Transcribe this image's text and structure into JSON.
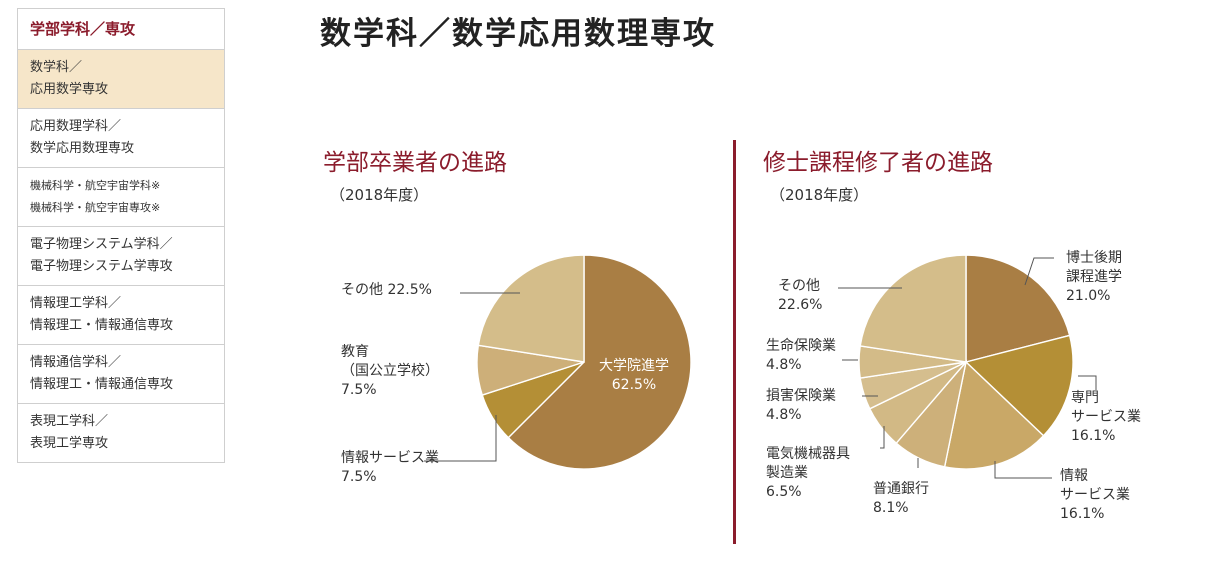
{
  "sidebar": {
    "heading": "学部学科／専攻",
    "items": [
      {
        "label": "数学科／\n応用数学専攻"
      },
      {
        "label": "応用数理学科／\n数学応用数理専攻"
      },
      {
        "label": "機械科学・航空宇宙学科※\n機械科学・航空宇宙専攻※"
      },
      {
        "label": "電子物理システム学科／\n電子物理システム学専攻"
      },
      {
        "label": "情報理工学科／\n情報理工・情報通信専攻"
      },
      {
        "label": "情報通信学科／\n情報理工・情報通信専攻"
      },
      {
        "label": "表現工学科／\n表現工学専攻"
      }
    ]
  },
  "page_title": "数学科／数学応用数理専攻",
  "colors": {
    "accent": "#8b1c2c",
    "active_bg": "#f6e6c9"
  },
  "chart_data": [
    {
      "type": "pie",
      "title": "学部卒業者の進路",
      "subtitle": "（2018年度）",
      "slices": [
        {
          "label": "大学院進学",
          "value": 62.5,
          "text": "62.5%",
          "color": "#a97e44"
        },
        {
          "label": "情報サービス業",
          "value": 7.5,
          "text": "7.5%",
          "color": "#b48f36"
        },
        {
          "label": "教育\n（国公立学校）",
          "value": 7.5,
          "text": "7.5%",
          "color": "#cdaf79"
        },
        {
          "label": "その他",
          "value": 22.5,
          "text": "22.5%",
          "color": "#d4bd8a"
        }
      ]
    },
    {
      "type": "pie",
      "title": "修士課程修了者の進路",
      "subtitle": "（2018年度）",
      "slices": [
        {
          "label": "博士後期\n課程進学",
          "value": 21.0,
          "text": "21.0%",
          "color": "#a97e44"
        },
        {
          "label": "専門\nサービス業",
          "value": 16.1,
          "text": "16.1%",
          "color": "#b48f36"
        },
        {
          "label": "情報\nサービス業",
          "value": 16.1,
          "text": "16.1%",
          "color": "#c9a867"
        },
        {
          "label": "普通銀行",
          "value": 8.1,
          "text": "8.1%",
          "color": "#cdb07a"
        },
        {
          "label": "電気機械器具\n製造業",
          "value": 6.5,
          "text": "6.5%",
          "color": "#d2b985"
        },
        {
          "label": "損害保険業",
          "value": 4.8,
          "text": "4.8%",
          "color": "#d5be8e"
        },
        {
          "label": "生命保険業",
          "value": 4.8,
          "text": "4.8%",
          "color": "#d3bb88"
        },
        {
          "label": "その他",
          "value": 22.6,
          "text": "22.6%",
          "color": "#d4bd8a"
        }
      ]
    }
  ]
}
